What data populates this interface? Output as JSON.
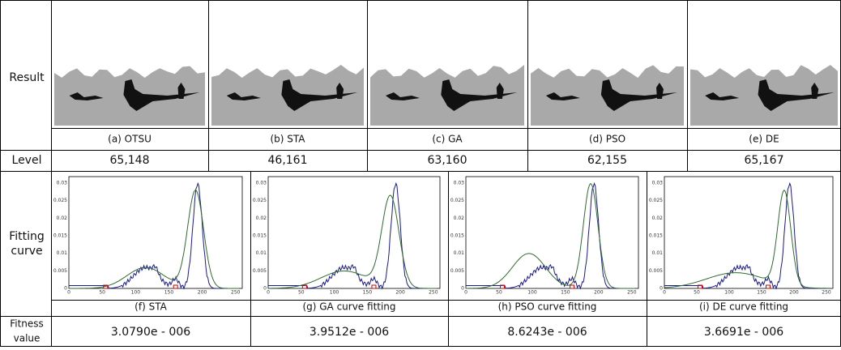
{
  "row_labels": {
    "result": "Result",
    "level": "Level",
    "fitting": [
      "Fitting",
      "curve"
    ],
    "fitness": [
      "Fitness",
      "value"
    ]
  },
  "methods": [
    {
      "caption": "(a)  OTSU",
      "level": "65,148"
    },
    {
      "caption": "(b)  STA",
      "level": "46,161"
    },
    {
      "caption": "(c)  GA",
      "level": "63,160"
    },
    {
      "caption": "(d)  PSO",
      "level": "62,155"
    },
    {
      "caption": "(e)  DE",
      "level": "65,167"
    }
  ],
  "curve_axes": {
    "yticks": [
      "0.03",
      "0.025",
      "0.02",
      "0.015",
      "0.01",
      "0.005",
      "0"
    ],
    "xticks": [
      "0",
      "50",
      "100",
      "150",
      "200",
      "250"
    ]
  },
  "fittings": [
    {
      "caption": "(f)  STA",
      "fitness": "3.0790e - 006"
    },
    {
      "caption": "(g) GA curve fitting",
      "fitness": "3.9512e - 006"
    },
    {
      "caption": "(h) PSO curve fitting",
      "fitness": "8.6243e - 006"
    },
    {
      "caption": "(i)  DE curve fitting",
      "fitness": "3.6691e - 006"
    }
  ]
}
